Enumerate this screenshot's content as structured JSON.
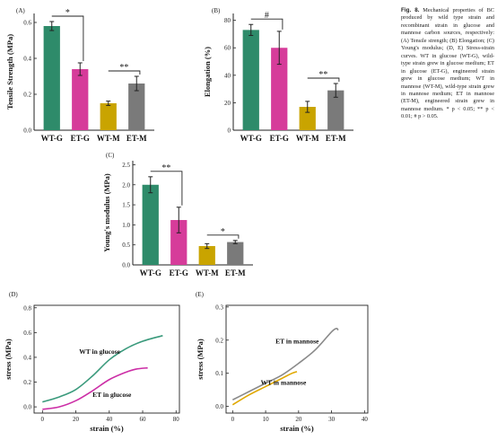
{
  "caption": {
    "label": "Fig. 8.",
    "text": "Mechanical properties of BC produced by wild type strain and recombinant strain in glucose and mannose carbon sources, respectively: (A) Tensile strength; (B) Elongation; (C) Young's modulus; (D, E) Stress-strain curves. WT in glucose (WT-G), wild-type strain grew in glucose medium; ET in glucose (ET-G), engineered strain grew in glucose medium; WT in mannose (WT-M), wild-type strain grew in mannose medium; ET in mannose (ET-M), engineered strain grew in mannose medium. * p < 0.05; ** p < 0.01; # p > 0.05."
  },
  "colors": {
    "WT-G": "#2e8b6a",
    "ET-G": "#d63c9a",
    "WT-M": "#c9a400",
    "ET-M": "#7a7a7a",
    "curve_wt_glucose": "#3a9a7c",
    "curve_et_glucose": "#cc2ea6",
    "curve_et_mannose": "#8a8a8a",
    "curve_wt_mannose": "#e0a800"
  },
  "chart_data": [
    {
      "panel": "(A)",
      "type": "bar",
      "categories": [
        "WT-G",
        "ET-G",
        "WT-M",
        "ET-M"
      ],
      "values": [
        0.58,
        0.34,
        0.15,
        0.26
      ],
      "errors": [
        0.025,
        0.035,
        0.012,
        0.04
      ],
      "ylabel": "Tensile Strength (MPa)",
      "ylim": [
        0,
        0.65
      ],
      "yticks": [
        "0.0",
        "0.2",
        "0.4",
        "0.6"
      ],
      "ytick_values": [
        0,
        0.2,
        0.4,
        0.6
      ],
      "annotations": [
        {
          "text": "*",
          "from": 0,
          "to": 1
        },
        {
          "text": "**",
          "from": 2,
          "to": 3
        }
      ]
    },
    {
      "panel": "(B)",
      "type": "bar",
      "categories": [
        "WT-G",
        "ET-G",
        "WT-M",
        "ET-M"
      ],
      "values": [
        73,
        60,
        17,
        29
      ],
      "errors": [
        4,
        12,
        4,
        5
      ],
      "ylabel": "Elongation (%)",
      "ylim": [
        0,
        85
      ],
      "yticks": [
        "0",
        "20",
        "40",
        "60",
        "80"
      ],
      "ytick_values": [
        0,
        20,
        40,
        60,
        80
      ],
      "annotations": [
        {
          "text": "#",
          "from": 0,
          "to": 1
        },
        {
          "text": "**",
          "from": 2,
          "to": 3
        }
      ]
    },
    {
      "panel": "(C)",
      "type": "bar",
      "categories": [
        "WT-G",
        "ET-G",
        "WT-M",
        "ET-M"
      ],
      "values": [
        2.0,
        1.12,
        0.47,
        0.57
      ],
      "errors": [
        0.2,
        0.32,
        0.06,
        0.04
      ],
      "ylabel": "Young's modulus (MPa)",
      "ylim": [
        0,
        2.6
      ],
      "yticks": [
        "0.0",
        "0.5",
        "1.0",
        "1.5",
        "2.0",
        "2.5"
      ],
      "ytick_values": [
        0,
        0.5,
        1.0,
        1.5,
        2.0,
        2.5
      ],
      "annotations": [
        {
          "text": "**",
          "from": 0,
          "to": 1
        },
        {
          "text": "*",
          "from": 2,
          "to": 3
        }
      ]
    },
    {
      "panel": "(D)",
      "type": "line",
      "xlabel": "strain (%)",
      "ylabel": "stress (MPa)",
      "xlim": [
        -5,
        82
      ],
      "ylim": [
        -0.05,
        0.82
      ],
      "xticks": [
        "0",
        "20",
        "40",
        "60",
        "80"
      ],
      "xtick_values": [
        0,
        20,
        40,
        60,
        80
      ],
      "yticks": [
        "0.0",
        "0.2",
        "0.4",
        "0.6",
        "0.8"
      ],
      "ytick_values": [
        0,
        0.2,
        0.4,
        0.6,
        0.8
      ],
      "series": [
        {
          "name": "WT in glucose",
          "x": [
            0,
            10,
            20,
            30,
            40,
            50,
            60,
            72
          ],
          "y": [
            0.04,
            0.08,
            0.14,
            0.25,
            0.38,
            0.47,
            0.53,
            0.575
          ]
        },
        {
          "name": "ET in glucose",
          "x": [
            0,
            10,
            20,
            30,
            40,
            50,
            56,
            63
          ],
          "y": [
            -0.02,
            0.0,
            0.05,
            0.13,
            0.22,
            0.28,
            0.305,
            0.315
          ]
        }
      ]
    },
    {
      "panel": "(E)",
      "type": "line",
      "xlabel": "strain (%)",
      "ylabel": "stress (MPa)",
      "xlim": [
        -2,
        41
      ],
      "ylim": [
        -0.02,
        0.305
      ],
      "xticks": [
        "0",
        "10",
        "20",
        "30",
        "40"
      ],
      "xtick_values": [
        0,
        10,
        20,
        30,
        40
      ],
      "yticks": [
        "0.0",
        "0.1",
        "0.2",
        "0.3"
      ],
      "ytick_values": [
        0,
        0.1,
        0.2,
        0.3
      ],
      "series": [
        {
          "name": "ET in mannose",
          "x": [
            0,
            5,
            10,
            15,
            20,
            25,
            30,
            31.5,
            32
          ],
          "y": [
            0.02,
            0.045,
            0.07,
            0.095,
            0.13,
            0.17,
            0.225,
            0.235,
            0.23
          ]
        },
        {
          "name": "WT in mannose",
          "x": [
            0,
            5,
            10,
            15,
            18,
            19.5
          ],
          "y": [
            0.005,
            0.035,
            0.06,
            0.085,
            0.1,
            0.105
          ]
        }
      ]
    }
  ]
}
